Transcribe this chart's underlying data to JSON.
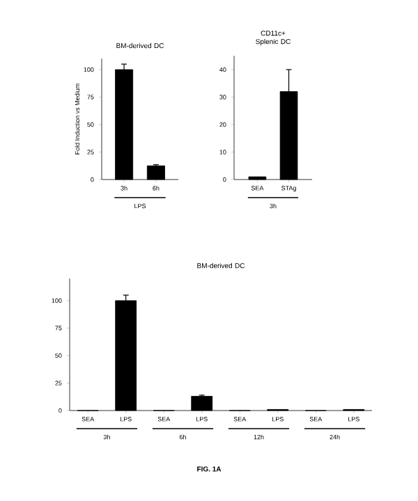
{
  "chart_data": [
    {
      "type": "bar",
      "title": "BM-derived DC",
      "ylabel": "Fold Induction vs Medium",
      "categories": [
        "3h",
        "6h"
      ],
      "values": [
        100,
        12.5
      ],
      "errors": [
        5,
        1
      ],
      "color": "#000000",
      "ylim": [
        0,
        110
      ],
      "yticks": [
        0,
        25,
        50,
        75,
        100
      ],
      "annotations": [
        "LPS"
      ]
    },
    {
      "type": "bar",
      "title": "CD11c+ Splenic DC",
      "categories": [
        "SEA",
        "STAg"
      ],
      "values": [
        1,
        32
      ],
      "errors": [
        null,
        8
      ],
      "color": "#000000",
      "ylim": [
        0,
        45
      ],
      "yticks": [
        0,
        10,
        20,
        30,
        40
      ],
      "annotations": [
        "3h"
      ]
    },
    {
      "type": "bar",
      "title": "BM-derived DC",
      "categories": [
        "SEA",
        "LPS",
        "SEA",
        "LPS",
        "SEA",
        "LPS",
        "SEA",
        "LPS"
      ],
      "values": [
        0,
        100,
        0,
        13,
        0,
        1,
        0,
        1
      ],
      "errors": [
        null,
        5,
        null,
        1,
        null,
        null,
        null,
        null
      ],
      "color": "#000000",
      "ylim": [
        0,
        120
      ],
      "yticks": [
        0,
        25,
        50,
        75,
        100
      ],
      "annotations": [
        "3h",
        "6h",
        "12h",
        "24h"
      ]
    },
    {
      "type": "other",
      "annotations": [
        "FIG. 1A"
      ]
    }
  ]
}
